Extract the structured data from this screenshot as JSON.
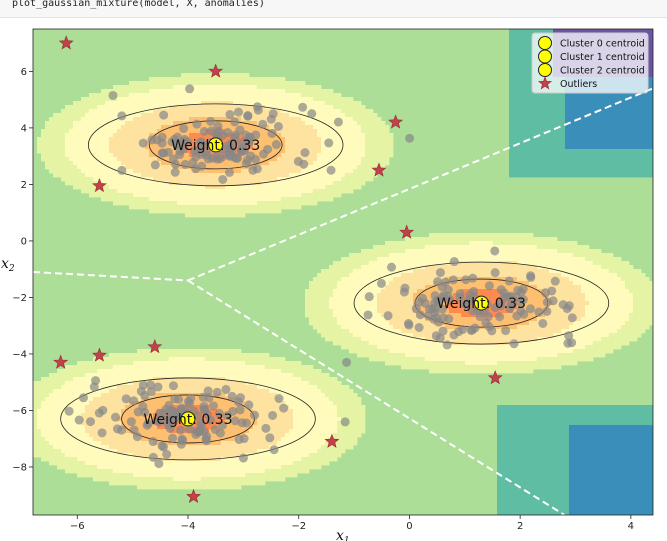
{
  "code_line": "plot_gaussian_mixture(model, X, anomalies)",
  "chart_data": {
    "type": "scatter",
    "xlabel": "x",
    "xlabel_sub": "1",
    "ylabel": "x",
    "ylabel_sub": "2",
    "xlim": [
      -6.8,
      4.4
    ],
    "ylim": [
      -9.7,
      7.5
    ],
    "xticks": [
      -6,
      -4,
      -2,
      0,
      2,
      4
    ],
    "xtick_labels": [
      "−6",
      "−4",
      "−2",
      "0",
      "2",
      "4"
    ],
    "yticks": [
      6,
      4,
      2,
      0,
      -2,
      -4,
      -6,
      -8
    ],
    "ytick_labels": [
      "6",
      "4",
      "2",
      "0",
      "−2",
      "−4",
      "−6",
      "−8"
    ],
    "contour_colors": [
      "#ff8a4d",
      "#fdbf70",
      "#fee3a0",
      "#fffbbd",
      "#e4f3a4",
      "#acde98",
      "#5fbda4",
      "#3a8fba",
      "#6b55a3"
    ],
    "point_color": "#888888",
    "legend": {
      "position": "top-right",
      "entries": [
        {
          "label": "Cluster 0 centroid",
          "marker": "circle",
          "color": "#ffff00"
        },
        {
          "label": "Cluster 1 centroid",
          "marker": "circle",
          "color": "#ffff00"
        },
        {
          "label": "Cluster 2 centroid",
          "marker": "circle",
          "color": "#ffff00"
        },
        {
          "label": "Outliers",
          "marker": "star",
          "color": "#d62728"
        }
      ]
    },
    "clusters": [
      {
        "center": [
          -3.5,
          3.4
        ],
        "weight_label": "Weight: 0.33",
        "spread": [
          0.9,
          0.6
        ]
      },
      {
        "center": [
          1.3,
          -2.2
        ],
        "weight_label": "Weight: 0.33",
        "spread": [
          0.9,
          0.6
        ]
      },
      {
        "center": [
          -4.0,
          -6.3
        ],
        "weight_label": "Weight: 0.33",
        "spread": [
          0.9,
          0.6
        ]
      }
    ],
    "outliers": [
      [
        -6.2,
        7.0
      ],
      [
        -3.5,
        6.0
      ],
      [
        -0.25,
        4.2
      ],
      [
        -5.6,
        1.95
      ],
      [
        -0.55,
        2.5
      ],
      [
        -0.05,
        0.3
      ],
      [
        -4.6,
        -3.75
      ],
      [
        -5.6,
        -4.05
      ],
      [
        -6.3,
        -4.3
      ],
      [
        1.55,
        -4.85
      ],
      [
        -1.4,
        -7.1
      ],
      [
        -3.9,
        -9.05
      ]
    ]
  }
}
